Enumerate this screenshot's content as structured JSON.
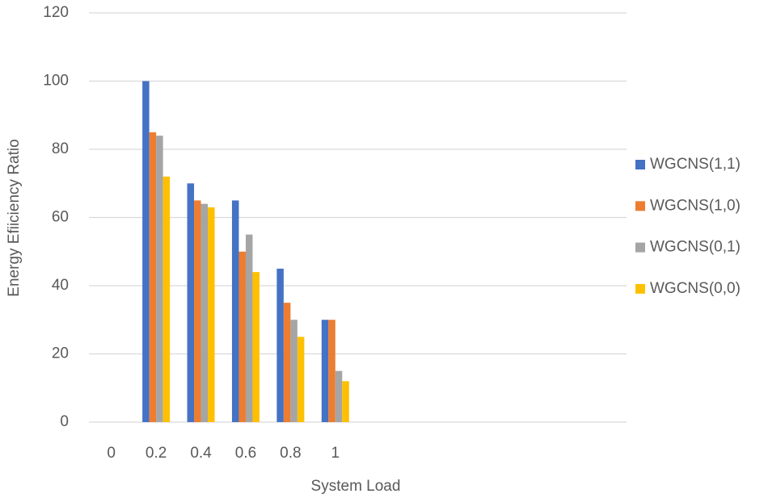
{
  "chart_data": {
    "type": "bar",
    "y_label": "Energy Efiiciency Ratio",
    "x_label": "System Load",
    "categories": [
      "0",
      "0.2",
      "0.4",
      "0.6",
      "0.8",
      "1",
      null,
      null,
      null,
      null,
      null,
      null
    ],
    "series": [
      {
        "name": "WGCNS(1,1)",
        "color": "#4472c4",
        "values": [
          null,
          100,
          70,
          65,
          45,
          30,
          null,
          null,
          null,
          null,
          null,
          null
        ]
      },
      {
        "name": "WGCNS(1,0)",
        "color": "#ed7d31",
        "values": [
          null,
          85,
          65,
          50,
          35,
          30,
          null,
          null,
          null,
          null,
          null,
          null
        ]
      },
      {
        "name": "WGCNS(0,1)",
        "color": "#a5a5a5",
        "values": [
          null,
          84,
          64,
          55,
          30,
          15,
          null,
          null,
          null,
          null,
          null,
          null
        ]
      },
      {
        "name": "WGCNS(0,0)",
        "color": "#ffc000",
        "values": [
          null,
          72,
          63,
          44,
          25,
          12,
          null,
          null,
          null,
          null,
          null,
          null
        ]
      }
    ],
    "ylim": [
      0,
      120
    ],
    "yticks": [
      0,
      20,
      40,
      60,
      80,
      100,
      120
    ],
    "grid": true,
    "legend": "right"
  }
}
